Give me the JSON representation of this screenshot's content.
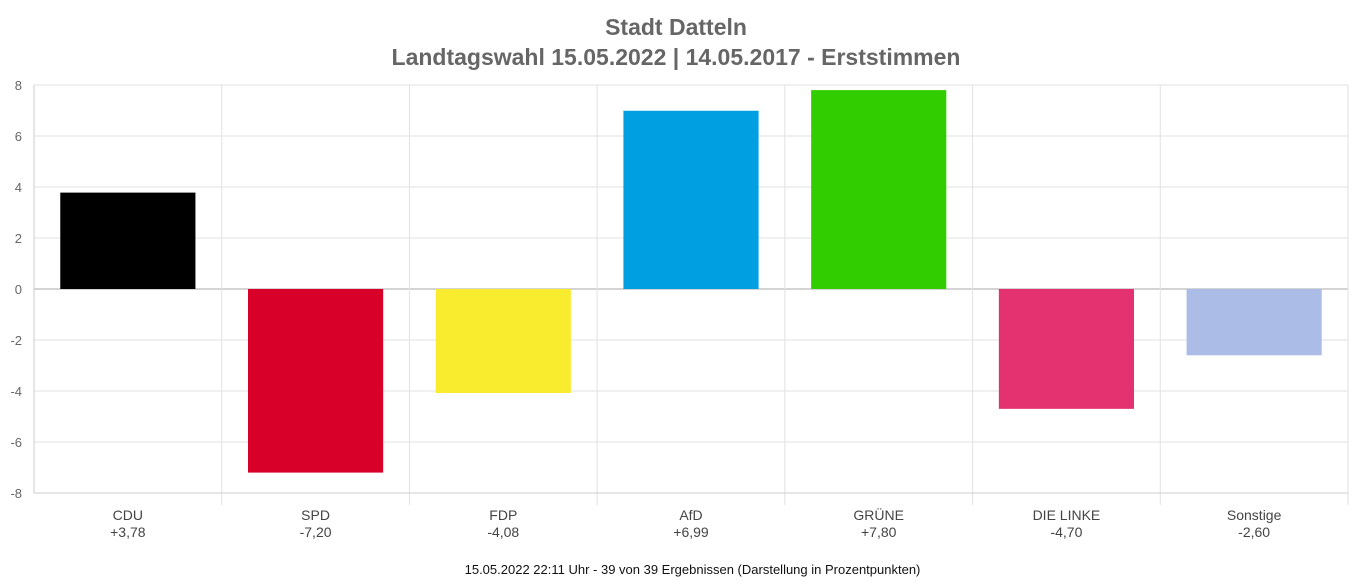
{
  "title_lines": [
    "Stadt Datteln",
    "Landtagswahl 15.05.2022  | 14.05.2017 - Erststimmen"
  ],
  "footer": "15.05.2022 22:11 Uhr - 39 von 39 Ergebnissen (Darstellung in Prozentpunkten)",
  "chart_data": {
    "type": "bar",
    "title": "Stadt Datteln\nLandtagswahl 15.05.2022  | 14.05.2017 - Erststimmen",
    "categories": [
      "CDU",
      "SPD",
      "FDP",
      "AfD",
      "GRÜNE",
      "DIE LINKE",
      "Sonstige"
    ],
    "value_labels": [
      "+3,78",
      "-7,20",
      "-4,08",
      "+6,99",
      "+7,80",
      "-4,70",
      "-2,60"
    ],
    "values": [
      3.78,
      -7.2,
      -4.08,
      6.99,
      7.8,
      -4.7,
      -2.6
    ],
    "colors": [
      "#000000",
      "#d80029",
      "#f9ec2e",
      "#009fe1",
      "#32cd00",
      "#e3326f",
      "#abbde6"
    ],
    "ylim": [
      -8,
      8
    ],
    "yticks": [
      8,
      6,
      4,
      2,
      0,
      -2,
      -4,
      -6,
      -8
    ],
    "grid": true,
    "xlabel": "",
    "ylabel": ""
  }
}
